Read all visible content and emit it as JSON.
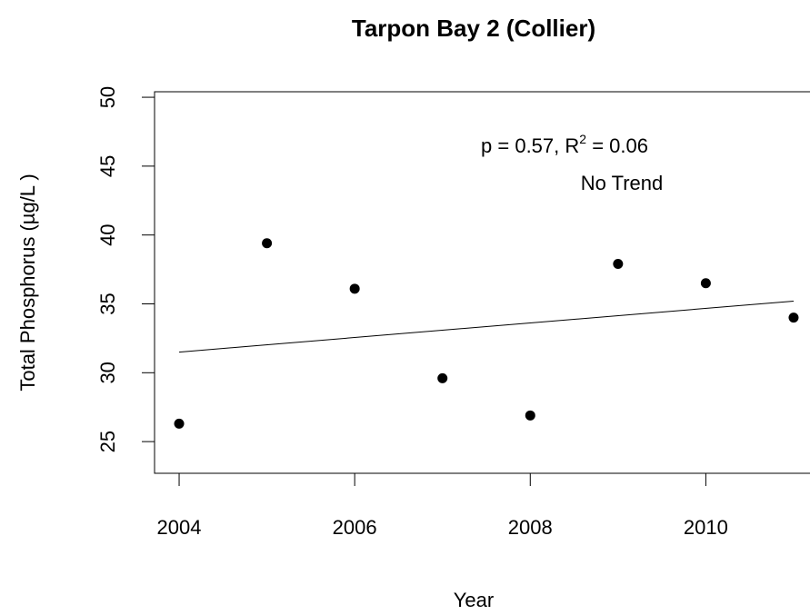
{
  "chart_data": {
    "type": "scatter",
    "title": "Tarpon Bay 2 (Collier)",
    "x_label": "Year",
    "y_label": "Total Phosphorus (µg/L )",
    "x": [
      2004,
      2005,
      2006,
      2007,
      2008,
      2009,
      2010,
      2011
    ],
    "values": [
      26.3,
      39.4,
      36.1,
      29.6,
      26.9,
      37.9,
      36.5,
      34.0
    ],
    "color": "#000000",
    "trend_line": {
      "x": [
        2004,
        2011
      ],
      "values": [
        31.5,
        35.2
      ]
    },
    "annotation": {
      "line1": [
        "p = 0.57, R",
        "2",
        " = 0.06"
      ],
      "line2": "No Trend"
    },
    "xlim": [
      2003.72,
      2011.28
    ],
    "ylim": [
      22.7,
      50.4
    ],
    "xticks": [
      2004,
      2006,
      2008,
      2010
    ],
    "yticks": [
      25,
      30,
      35,
      40,
      45,
      50
    ]
  }
}
